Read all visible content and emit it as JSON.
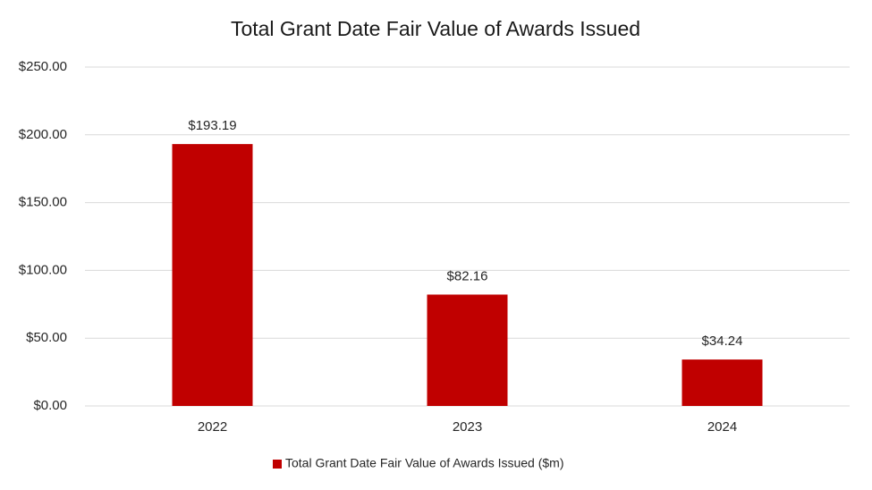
{
  "chart_data": {
    "type": "bar",
    "title": "Total Grant Date Fair Value of Awards Issued",
    "categories": [
      "2022",
      "2023",
      "2024"
    ],
    "series": [
      {
        "name": "Total Grant Date Fair Value of Awards Issued ($m)",
        "color": "#c00000",
        "values": [
          193.19,
          82.16,
          34.24
        ],
        "value_labels": [
          "$193.19",
          "$82.16",
          "$34.24"
        ]
      }
    ],
    "ylim": [
      0,
      250
    ],
    "yticks": [
      {
        "value": 0,
        "label": "$0.00"
      },
      {
        "value": 50,
        "label": "$50.00"
      },
      {
        "value": 100,
        "label": "$100.00"
      },
      {
        "value": 150,
        "label": "$150.00"
      },
      {
        "value": 200,
        "label": "$200.00"
      },
      {
        "value": 250,
        "label": "$250.00"
      }
    ],
    "grid": true,
    "legend": "bottom"
  }
}
